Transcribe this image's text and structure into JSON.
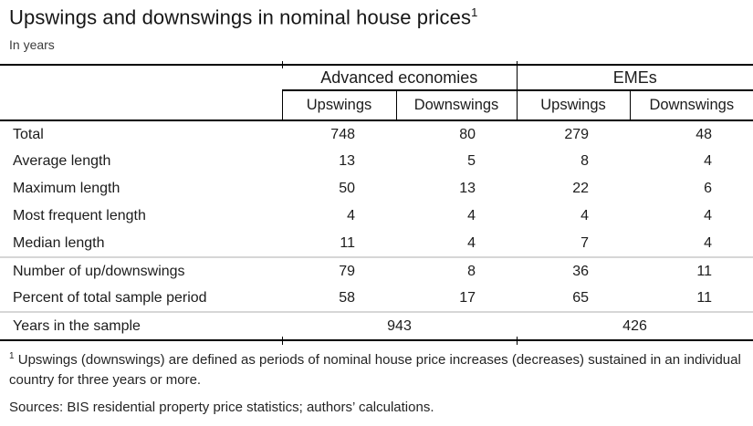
{
  "title": "Upswings and downswings in nominal house prices",
  "title_footnote_marker": "1",
  "subtitle": "In years",
  "colors": {
    "text": "#1c1c1c",
    "rule_black": "#000000",
    "rule_gray": "#d6d6d6",
    "background": "#ffffff"
  },
  "chart_data": {
    "type": "table",
    "title": "Upswings and downswings in nominal house prices",
    "unit": "In years",
    "column_groups": [
      "Advanced economies",
      "EMEs"
    ],
    "columns": [
      "Upswings",
      "Downswings",
      "Upswings",
      "Downswings"
    ],
    "rows": [
      {
        "label": "Total",
        "values": [
          748,
          80,
          279,
          48
        ]
      },
      {
        "label": "Average length",
        "values": [
          13,
          5,
          8,
          4
        ]
      },
      {
        "label": "Maximum length",
        "values": [
          50,
          13,
          22,
          6
        ]
      },
      {
        "label": "Most frequent length",
        "values": [
          4,
          4,
          4,
          4
        ]
      },
      {
        "label": "Median length",
        "values": [
          11,
          4,
          7,
          4
        ]
      },
      {
        "label": "Number of up/downswings",
        "values": [
          79,
          8,
          36,
          11
        ]
      },
      {
        "label": "Percent of total sample period",
        "values": [
          58,
          17,
          65,
          11
        ]
      },
      {
        "label": "Years in the sample",
        "values": [
          943,
          426
        ]
      }
    ]
  },
  "table": {
    "group_headers": {
      "advanced": "Advanced economies",
      "emes": "EMEs"
    },
    "sub_headers": [
      "Upswings",
      "Downswings",
      "Upswings",
      "Downswings"
    ],
    "rows": [
      {
        "label": "Total",
        "values": [
          "748",
          "80",
          "279",
          "48"
        ]
      },
      {
        "label": "Average length",
        "values": [
          "13",
          "5",
          "8",
          "4"
        ]
      },
      {
        "label": "Maximum length",
        "values": [
          "50",
          "13",
          "22",
          "6"
        ]
      },
      {
        "label": "Most frequent length",
        "values": [
          "4",
          "4",
          "4",
          "4"
        ]
      },
      {
        "label": "Median length",
        "values": [
          "11",
          "4",
          "7",
          "4"
        ]
      },
      {
        "label": "Number of up/downswings",
        "values": [
          "79",
          "8",
          "36",
          "11"
        ]
      },
      {
        "label": "Percent of total sample period",
        "values": [
          "58",
          "17",
          "65",
          "11"
        ]
      }
    ],
    "span_row": {
      "label": "Years in the sample",
      "values": [
        "943",
        "426"
      ]
    }
  },
  "footnote": {
    "marker": "1",
    "text": "Upswings (downswings) are defined as periods of nominal house price increases (decreases) sustained in an individual country for three years or more."
  },
  "sources": "Sources: BIS residential property price statistics; authors’ calculations."
}
